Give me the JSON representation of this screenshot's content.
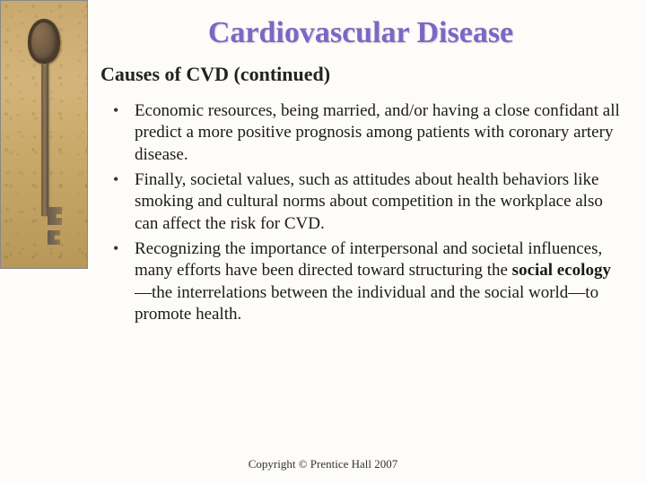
{
  "title": "Cardiovascular Disease",
  "subtitle": "Causes of CVD (continued)",
  "bullets": [
    {
      "pre": "Economic resources, being married, and/or having a close confidant all predict a more positive prognosis among patients with coronary artery disease.",
      "bold": "",
      "post": ""
    },
    {
      "pre": "Finally, societal values, such as attitudes about health behaviors like smoking and cultural norms about competition in the workplace also can affect the risk for CVD.",
      "bold": "",
      "post": ""
    },
    {
      "pre": "Recognizing the importance of interpersonal and societal influences, many efforts have been directed toward structuring the ",
      "bold": "social ecology",
      "post": "—the interrelations between the individual and the social world—to promote health."
    }
  ],
  "footer": "Copyright © Prentice Hall 2007",
  "colors": {
    "title": "#7b68c4",
    "background": "#fdfcf9",
    "sidebar_base": "#c9a96e",
    "key": "#5a4a3a"
  },
  "fonts": {
    "title_size": 34,
    "subtitle_size": 22,
    "body_size": 19,
    "footer_size": 13
  }
}
